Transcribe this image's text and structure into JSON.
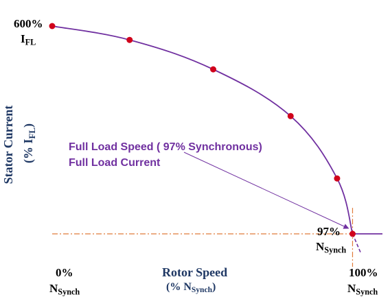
{
  "chart_data": {
    "type": "line",
    "title": "",
    "ylabel": "Stator Current",
    "ylabel_unit": "(% I",
    "ylabel_unit_sub": "FL",
    "ylabel_unit_close": ")",
    "xlabel": "Rotor Speed",
    "xlabel_unit": "(% N",
    "xlabel_unit_sub": "Synch",
    "xlabel_unit_close": ")",
    "xlim": [
      0,
      100
    ],
    "ylim": [
      0,
      600
    ],
    "grid": false,
    "series": [
      {
        "x": [
          0,
          25,
          52,
          77,
          92,
          97,
          100
        ],
        "y": [
          600,
          560,
          475,
          340,
          160,
          0,
          0
        ],
        "marker_x": [
          0,
          25,
          52,
          77,
          92,
          97
        ],
        "marker_y": [
          600,
          560,
          475,
          340,
          160,
          0
        ],
        "color": "#7030a0",
        "marker_color": "#d0021b"
      }
    ],
    "dashed_extension": {
      "x": [
        97,
        100
      ],
      "y": [
        0,
        -30
      ]
    },
    "reference_lines": {
      "x": 97,
      "y": 0,
      "color": "#e07b39"
    },
    "tick_labels": {
      "y_top_value": "600%",
      "y_top_symbol": "I",
      "y_top_sub": "FL",
      "x_left_value": "0%",
      "x_left_symbol": "N",
      "x_left_sub": "Synch",
      "x_right_value": "100%",
      "x_right_symbol": "N",
      "x_right_sub": "Synch"
    },
    "annotations": {
      "line1": "Full Load Speed ( 97% Synchronous)",
      "line2": "Full Load Current",
      "point_value": "97%",
      "point_symbol": "N",
      "point_sub": "Synch"
    }
  }
}
